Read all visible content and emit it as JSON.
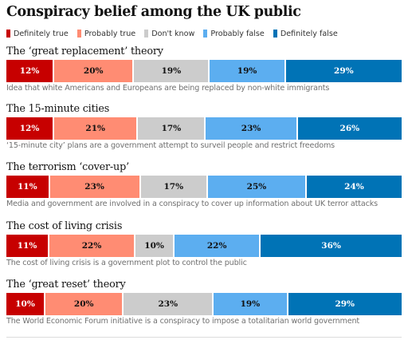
{
  "title": "Conspiracy belief among the UK public",
  "colors": {
    "definitely_true": "#c70000",
    "probably_true": "#ff8c73",
    "dont_know": "#cccccc",
    "probably_false": "#5caef0",
    "definitely_false": "#0073b6"
  },
  "legend": [
    {
      "label": "Definitely true",
      "color": "#c70000"
    },
    {
      "label": "Probably true",
      "color": "#ff8c73"
    },
    {
      "label": "Don't know",
      "color": "#cccccc"
    },
    {
      "label": "Probably false",
      "color": "#5caef0"
    },
    {
      "label": "Definitely false",
      "color": "#0073b6"
    }
  ],
  "chart_data": {
    "type": "bar",
    "orientation": "horizontal-stacked-100",
    "title": "Conspiracy belief among the UK public",
    "series_names": [
      "Definitely true",
      "Probably true",
      "Don't know",
      "Probably false",
      "Definitely false"
    ],
    "legend_position": "top-left",
    "grid": false,
    "groups": [
      {
        "title": "The ‘great replacement’ theory",
        "description": "Idea that white Americans and Europeans are being replaced by non-white immigrants",
        "values": [
          12,
          20,
          19,
          19,
          29
        ],
        "labels": [
          "12%",
          "20%",
          "19%",
          "19%",
          "29%"
        ]
      },
      {
        "title": "The 15-minute cities",
        "description": "‘15-minute city’ plans are a government attempt to surveil people and restrict freedoms",
        "values": [
          12,
          21,
          17,
          23,
          26
        ],
        "labels": [
          "12%",
          "21%",
          "17%",
          "23%",
          "26%"
        ]
      },
      {
        "title": "The terrorism ‘cover-up’",
        "description": "Media and government are involved in a conspiracy to cover up information about UK terror attacks",
        "values": [
          11,
          23,
          17,
          25,
          24
        ],
        "labels": [
          "11%",
          "23%",
          "17%",
          "25%",
          "24%"
        ]
      },
      {
        "title": "The cost of living crisis",
        "description": "The cost of living crisis is a government plot to control the public",
        "values": [
          11,
          22,
          10,
          22,
          36
        ],
        "labels": [
          "11%",
          "22%",
          "10%",
          "22%",
          "36%"
        ]
      },
      {
        "title": "The ‘great reset’ theory",
        "description": "The World Economic Forum initiative is a conspiracy to impose a totalitarian world government",
        "values": [
          10,
          20,
          23,
          19,
          29
        ],
        "labels": [
          "10%",
          "20%",
          "23%",
          "19%",
          "29%"
        ]
      }
    ]
  }
}
